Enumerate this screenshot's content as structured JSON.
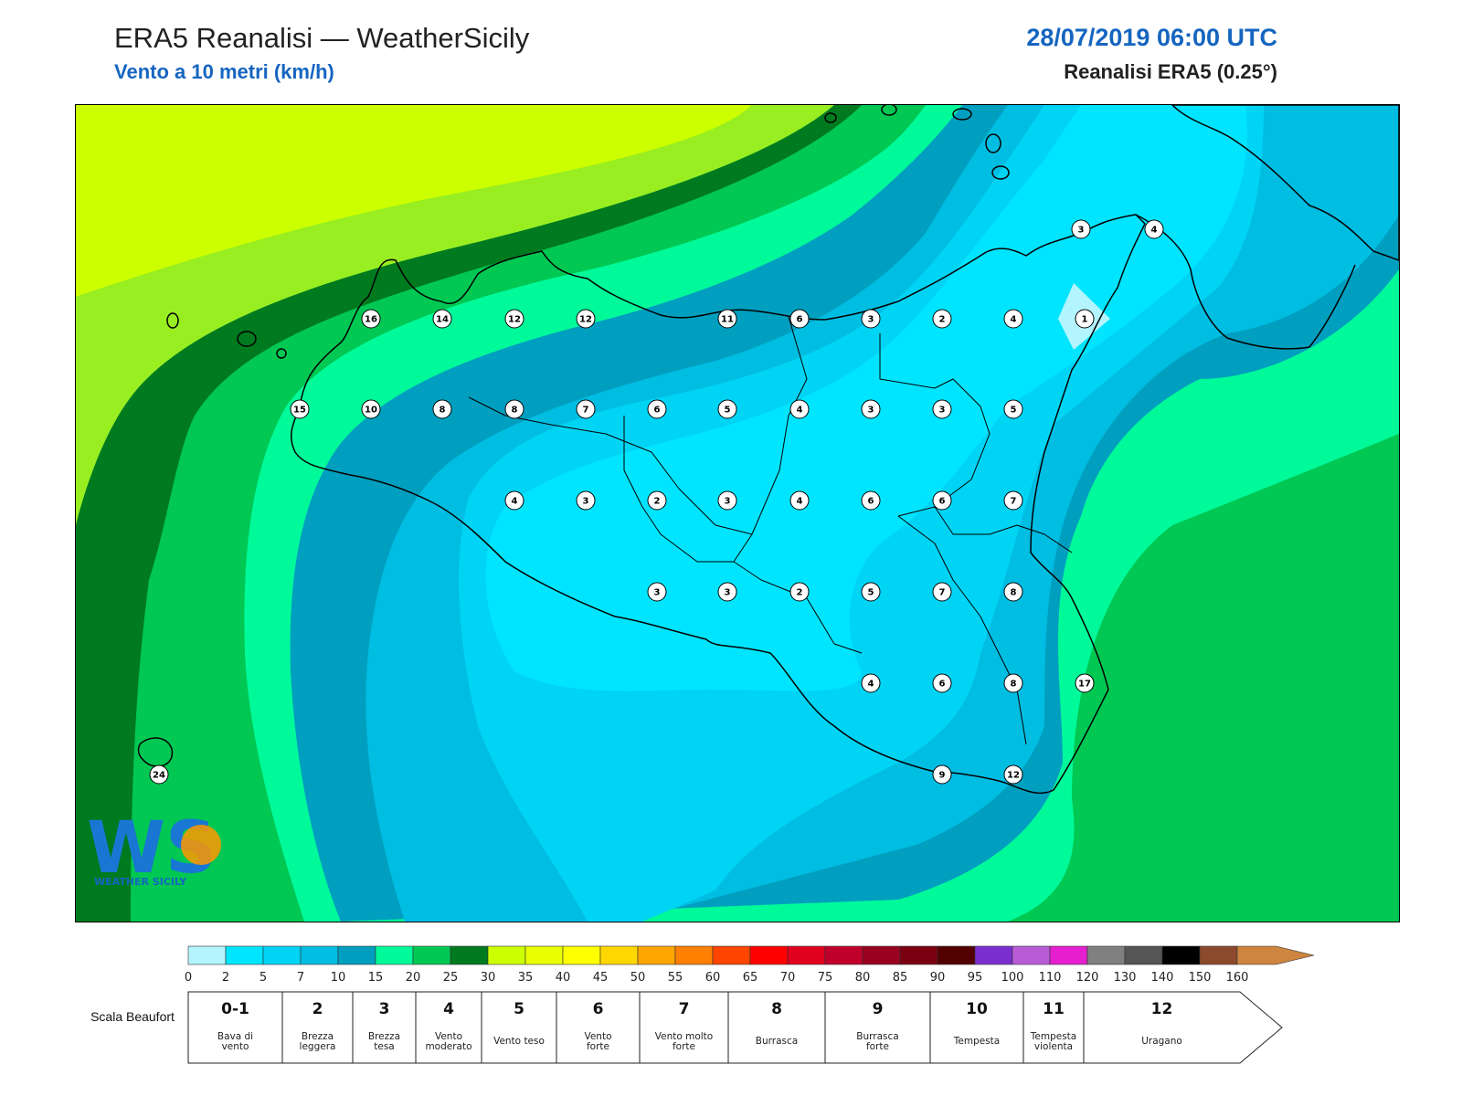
{
  "header": {
    "title": "ERA5 Reanalisi — WeatherSicily",
    "subtitle": "Vento a 10 metri (km/h)",
    "datetime": "28/07/2019 06:00 UTC",
    "source": "Reanalisi ERA5 (0.25°)"
  },
  "stations": [
    {
      "value": "3"
    },
    {
      "value": "4"
    },
    {
      "value": "16"
    },
    {
      "value": "14"
    },
    {
      "value": "12"
    },
    {
      "value": "12"
    },
    {
      "value": "11"
    },
    {
      "value": "6"
    },
    {
      "value": "3"
    },
    {
      "value": "2"
    },
    {
      "value": "4"
    },
    {
      "value": "1"
    },
    {
      "value": "15"
    },
    {
      "value": "10"
    },
    {
      "value": "8"
    },
    {
      "value": "8"
    },
    {
      "value": "7"
    },
    {
      "value": "6"
    },
    {
      "value": "5"
    },
    {
      "value": "4"
    },
    {
      "value": "3"
    },
    {
      "value": "3"
    },
    {
      "value": "5"
    },
    {
      "value": "4"
    },
    {
      "value": "3"
    },
    {
      "value": "2"
    },
    {
      "value": "3"
    },
    {
      "value": "4"
    },
    {
      "value": "6"
    },
    {
      "value": "6"
    },
    {
      "value": "7"
    },
    {
      "value": "3"
    },
    {
      "value": "3"
    },
    {
      "value": "2"
    },
    {
      "value": "5"
    },
    {
      "value": "7"
    },
    {
      "value": "8"
    },
    {
      "value": "4"
    },
    {
      "value": "6"
    },
    {
      "value": "8"
    },
    {
      "value": "17"
    },
    {
      "value": "24"
    },
    {
      "value": "9"
    },
    {
      "value": "12"
    }
  ],
  "colorbar": {
    "ticks": [
      "0",
      "2",
      "5",
      "7",
      "10",
      "15",
      "20",
      "25",
      "30",
      "35",
      "40",
      "45",
      "50",
      "55",
      "60",
      "65",
      "70",
      "75",
      "80",
      "85",
      "90",
      "95",
      "100",
      "110",
      "120",
      "130",
      "140",
      "150",
      "160"
    ],
    "colors": [
      "#b3f5ff",
      "#00e5ff",
      "#00d4f5",
      "#00bde2",
      "#009fbf",
      "#00fa9a",
      "#00c853",
      "#007a1f",
      "#ccff00",
      "#e9ff00",
      "#ffff00",
      "#ffd700",
      "#ffa500",
      "#ff7f00",
      "#ff4500",
      "#ff0000",
      "#e00020",
      "#c0002a",
      "#9a0020",
      "#7a0010",
      "#520000",
      "#7b2fd0",
      "#b85cd6",
      "#e51ecf",
      "#808080",
      "#555555",
      "#000000",
      "#8b4a2b",
      "#cd853f"
    ]
  },
  "beaufort": {
    "label": "Scala Beaufort",
    "levels": [
      {
        "num": "0-1",
        "desc": [
          "Bava di",
          "vento"
        ]
      },
      {
        "num": "2",
        "desc": [
          "Brezza",
          "leggera"
        ]
      },
      {
        "num": "3",
        "desc": [
          "Brezza",
          "tesa"
        ]
      },
      {
        "num": "4",
        "desc": [
          "Vento",
          "moderato"
        ]
      },
      {
        "num": "5",
        "desc": [
          "Vento teso"
        ]
      },
      {
        "num": "6",
        "desc": [
          "Vento",
          "forte"
        ]
      },
      {
        "num": "7",
        "desc": [
          "Vento molto",
          "forte"
        ]
      },
      {
        "num": "8",
        "desc": [
          "Burrasca"
        ]
      },
      {
        "num": "9",
        "desc": [
          "Burrasca",
          "forte"
        ]
      },
      {
        "num": "10",
        "desc": [
          "Tempesta"
        ]
      },
      {
        "num": "11",
        "desc": [
          "Tempesta",
          "violenta"
        ]
      },
      {
        "num": "12",
        "desc": [
          "Uragano"
        ]
      }
    ]
  },
  "logo": {
    "text": "WS",
    "caption": "WEATHER SICILY"
  },
  "palette": {
    "lime": "#ccff00",
    "greenlime": "#99ee22",
    "lightgreen": "#33dd44",
    "green": "#00c853",
    "darkgreen": "#007a1f",
    "aqua": "#00fa9a",
    "teal": "#009fbf",
    "bluec": "#00bde2",
    "cyan": "#00d4f5",
    "brightcyan": "#00e5ff",
    "pale": "#b3f5ff"
  }
}
